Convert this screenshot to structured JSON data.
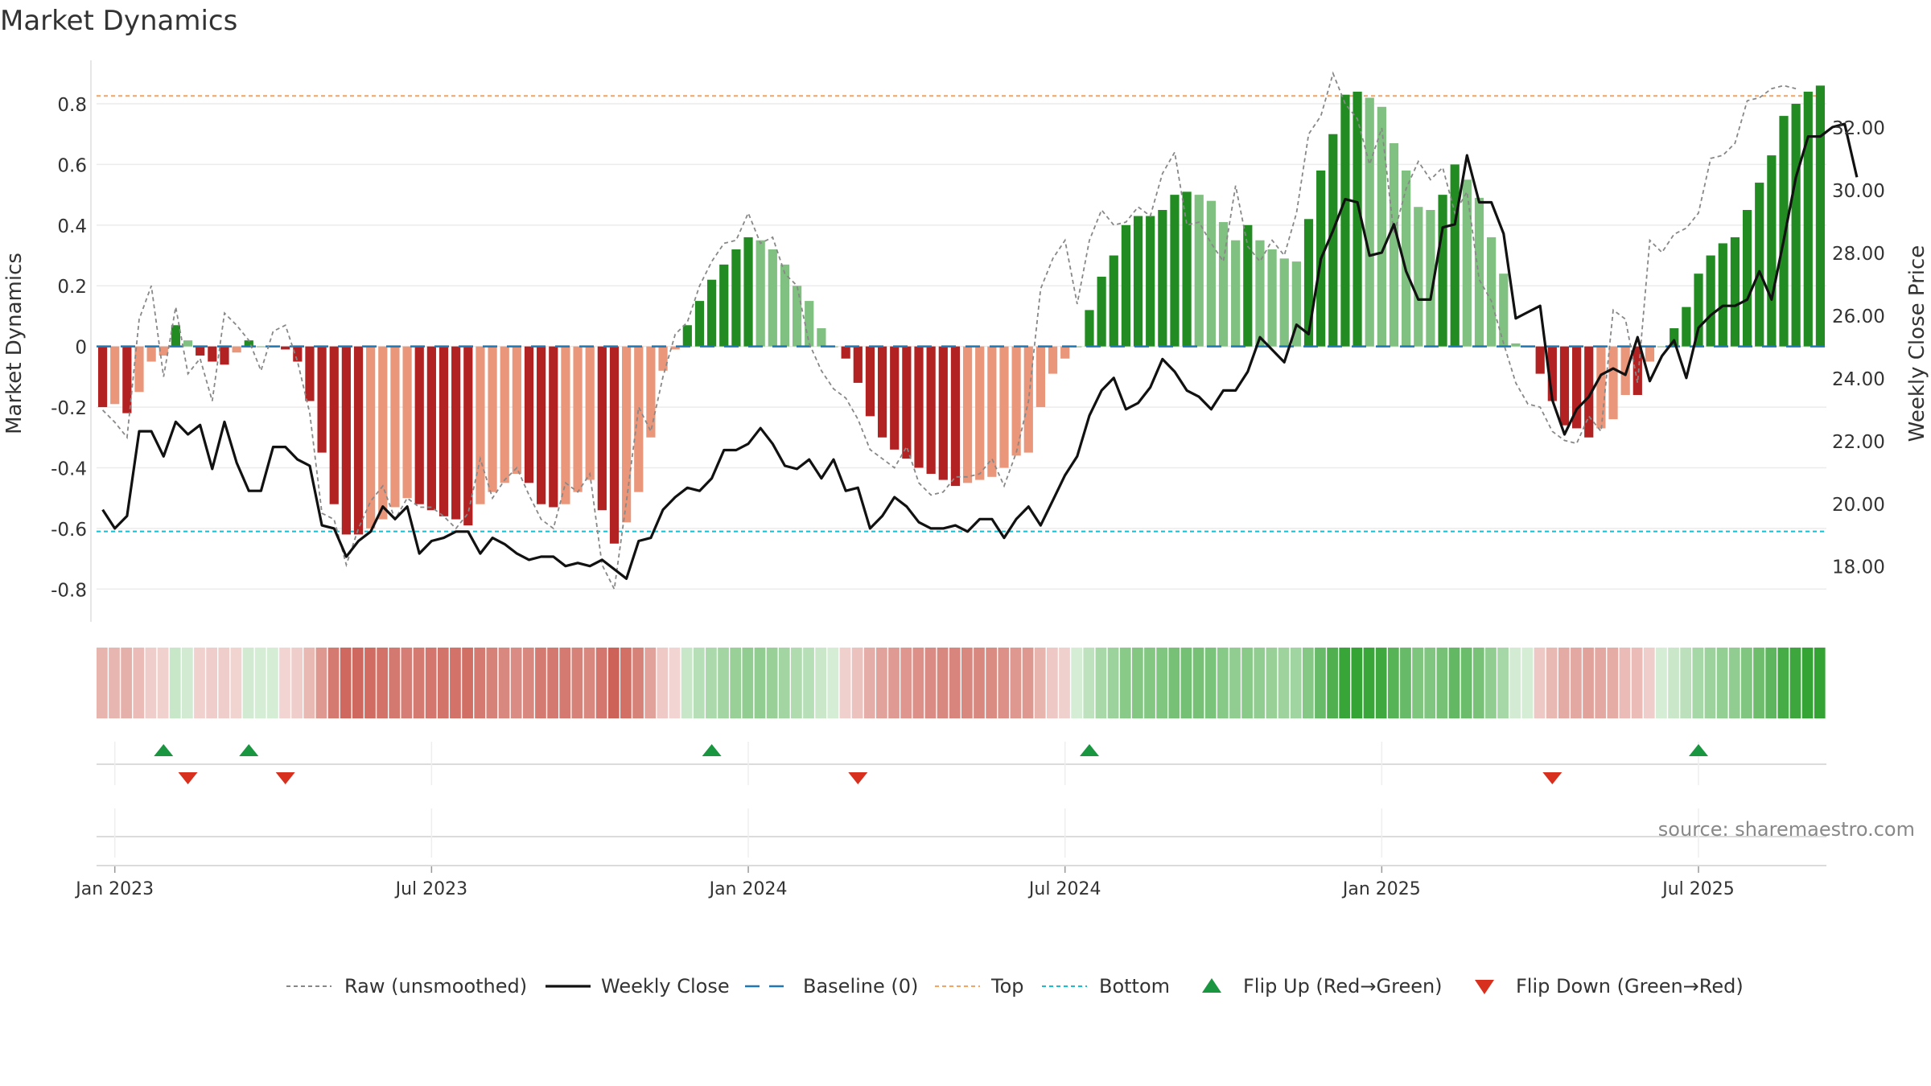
{
  "title": "Market Dynamics",
  "source": "source: sharemaestro.com",
  "chart_data": {
    "type": "bar",
    "ylabel_left": "Market Dynamics",
    "ylabel_right": "Weekly Close Price",
    "ylim_left": [
      -0.9,
      0.93
    ],
    "ylim_right": [
      16.3,
      34.0
    ],
    "yticks_left": [
      "0.8",
      "0.6",
      "0.4",
      "0.2",
      "0",
      "-0.2",
      "-0.4",
      "-0.6",
      "-0.8"
    ],
    "yticks_right": [
      "32.00",
      "30.00",
      "28.00",
      "26.00",
      "24.00",
      "22.00",
      "20.00",
      "18.00"
    ],
    "x_tick_labels": [
      "Jan 2023",
      "Jul 2023",
      "Jan 2024",
      "Jul 2024",
      "Jan 2025",
      "Jul 2025"
    ],
    "x_tick_weeks": [
      1,
      27,
      53,
      79,
      105,
      131
    ],
    "start_date": "2022-12-26",
    "top_line": 0.826,
    "bottom_line": -0.61,
    "baseline": 0,
    "colors": {
      "strong_green": "#228b22",
      "light_green": "#80c080",
      "strong_red": "#b22222",
      "light_red": "#e9967a",
      "close_line": "#111111",
      "raw_line": "#888888",
      "baseline": "#1f77b4",
      "top": "#f4a460",
      "bottom": "#17becf",
      "flip_up": "#1a9641",
      "flip_down": "#d7301f",
      "heat_green": "#2ca02c",
      "heat_red": "#c0392b"
    },
    "series": [
      {
        "name": "Market Dynamics (smoothed)",
        "values": [
          -0.2,
          -0.19,
          -0.22,
          -0.15,
          -0.05,
          -0.03,
          0.07,
          0.02,
          -0.03,
          -0.05,
          -0.06,
          -0.02,
          0.02,
          0.0,
          0.0,
          -0.01,
          -0.05,
          -0.18,
          -0.35,
          -0.52,
          -0.62,
          -0.62,
          -0.6,
          -0.57,
          -0.53,
          -0.5,
          -0.52,
          -0.54,
          -0.56,
          -0.57,
          -0.59,
          -0.52,
          -0.48,
          -0.45,
          -0.42,
          -0.45,
          -0.52,
          -0.53,
          -0.52,
          -0.48,
          -0.44,
          -0.54,
          -0.65,
          -0.58,
          -0.48,
          -0.3,
          -0.08,
          -0.01,
          0.07,
          0.15,
          0.22,
          0.27,
          0.32,
          0.36,
          0.35,
          0.32,
          0.27,
          0.2,
          0.15,
          0.06,
          0.0,
          -0.04,
          -0.12,
          -0.23,
          -0.3,
          -0.34,
          -0.37,
          -0.4,
          -0.42,
          -0.44,
          -0.46,
          -0.45,
          -0.44,
          -0.43,
          -0.4,
          -0.36,
          -0.35,
          -0.2,
          -0.09,
          -0.04,
          0.0,
          0.12,
          0.23,
          0.3,
          0.4,
          0.43,
          0.43,
          0.45,
          0.5,
          0.51,
          0.5,
          0.48,
          0.41,
          0.35,
          0.4,
          0.35,
          0.32,
          0.29,
          0.28,
          0.42,
          0.58,
          0.7,
          0.83,
          0.84,
          0.82,
          0.79,
          0.67,
          0.58,
          0.46,
          0.45,
          0.5,
          0.6,
          0.55,
          0.49,
          0.36,
          0.24,
          0.01,
          0.0,
          -0.09,
          -0.18,
          -0.26,
          -0.27,
          -0.3,
          -0.27,
          -0.24,
          -0.16,
          -0.16,
          -0.05,
          0.0,
          0.06,
          0.13,
          0.24,
          0.3,
          0.34,
          0.36,
          0.45,
          0.54,
          0.63,
          0.76,
          0.8,
          0.84,
          0.86
        ]
      },
      {
        "name": "Raw (unsmoothed)",
        "values": [
          -0.21,
          -0.25,
          -0.3,
          0.09,
          0.2,
          -0.1,
          0.13,
          -0.09,
          -0.04,
          -0.18,
          0.11,
          0.07,
          0.02,
          -0.08,
          0.05,
          0.07,
          -0.05,
          -0.22,
          -0.55,
          -0.57,
          -0.72,
          -0.6,
          -0.51,
          -0.46,
          -0.57,
          -0.5,
          -0.53,
          -0.53,
          -0.56,
          -0.6,
          -0.55,
          -0.37,
          -0.5,
          -0.44,
          -0.4,
          -0.49,
          -0.57,
          -0.6,
          -0.45,
          -0.48,
          -0.42,
          -0.72,
          -0.8,
          -0.51,
          -0.2,
          -0.28,
          -0.1,
          0.04,
          0.08,
          0.2,
          0.28,
          0.34,
          0.35,
          0.44,
          0.34,
          0.36,
          0.24,
          0.2,
          0.01,
          -0.08,
          -0.14,
          -0.17,
          -0.24,
          -0.34,
          -0.37,
          -0.4,
          -0.33,
          -0.45,
          -0.49,
          -0.48,
          -0.43,
          -0.43,
          -0.42,
          -0.37,
          -0.46,
          -0.35,
          -0.18,
          0.19,
          0.29,
          0.35,
          0.14,
          0.35,
          0.45,
          0.4,
          0.41,
          0.46,
          0.43,
          0.57,
          0.64,
          0.4,
          0.41,
          0.34,
          0.28,
          0.53,
          0.33,
          0.28,
          0.35,
          0.3,
          0.44,
          0.7,
          0.76,
          0.9,
          0.8,
          0.75,
          0.6,
          0.72,
          0.37,
          0.52,
          0.61,
          0.55,
          0.59,
          0.44,
          0.51,
          0.22,
          0.15,
          0.01,
          -0.12,
          -0.19,
          -0.2,
          -0.28,
          -0.31,
          -0.32,
          -0.23,
          -0.28,
          0.12,
          0.09,
          -0.12,
          0.35,
          0.31,
          0.37,
          0.39,
          0.44,
          0.62,
          0.63,
          0.67,
          0.81,
          0.82,
          0.85,
          0.86,
          0.85
        ]
      },
      {
        "name": "Weekly Close",
        "values": [
          19.8,
          19.2,
          19.6,
          22.3,
          22.3,
          21.5,
          22.6,
          22.2,
          22.5,
          21.1,
          22.6,
          21.3,
          20.4,
          20.4,
          21.8,
          21.8,
          21.4,
          21.2,
          19.3,
          19.2,
          18.3,
          18.8,
          19.1,
          19.9,
          19.5,
          19.9,
          18.4,
          18.8,
          18.9,
          19.1,
          19.1,
          18.4,
          18.9,
          18.7,
          18.4,
          18.2,
          18.3,
          18.3,
          18.0,
          18.1,
          18.0,
          18.2,
          17.9,
          17.6,
          18.8,
          18.9,
          19.8,
          20.2,
          20.5,
          20.4,
          20.8,
          21.7,
          21.7,
          21.9,
          22.4,
          21.9,
          21.2,
          21.1,
          21.4,
          20.8,
          21.4,
          20.4,
          20.5,
          19.2,
          19.6,
          20.2,
          19.9,
          19.4,
          19.2,
          19.2,
          19.3,
          19.1,
          19.5,
          19.5,
          18.9,
          19.5,
          19.9,
          19.3,
          20.1,
          20.9,
          21.5,
          22.8,
          23.6,
          24.0,
          23.0,
          23.2,
          23.7,
          24.6,
          24.2,
          23.6,
          23.4,
          23.0,
          23.6,
          23.6,
          24.2,
          25.3,
          24.9,
          24.5,
          25.7,
          25.4,
          27.8,
          28.7,
          29.7,
          29.6,
          27.9,
          28.0,
          28.9,
          27.4,
          26.5,
          26.5,
          28.8,
          28.9,
          31.1,
          29.6,
          29.6,
          28.6,
          25.9,
          26.1,
          26.3,
          23.3,
          22.2,
          23.0,
          23.4,
          24.1,
          24.3,
          24.1,
          25.3,
          23.9,
          24.7,
          25.2,
          24.0,
          25.6,
          26.0,
          26.3,
          26.3,
          26.5,
          27.4,
          26.5,
          28.4,
          30.4,
          31.7,
          31.7,
          32.0,
          32.1,
          30.4
        ]
      }
    ],
    "flips_up_weeks": [
      5,
      12,
      50,
      81,
      131
    ],
    "flips_down_weeks": [
      7,
      15,
      62,
      119
    ],
    "legend": [
      "Raw (unsmoothed)",
      "Weekly Close",
      "Baseline (0)",
      "Top",
      "Bottom",
      "Flip Up (Red→Green)",
      "Flip Down (Green→Red)"
    ],
    "legend_position": "bottom-center"
  }
}
